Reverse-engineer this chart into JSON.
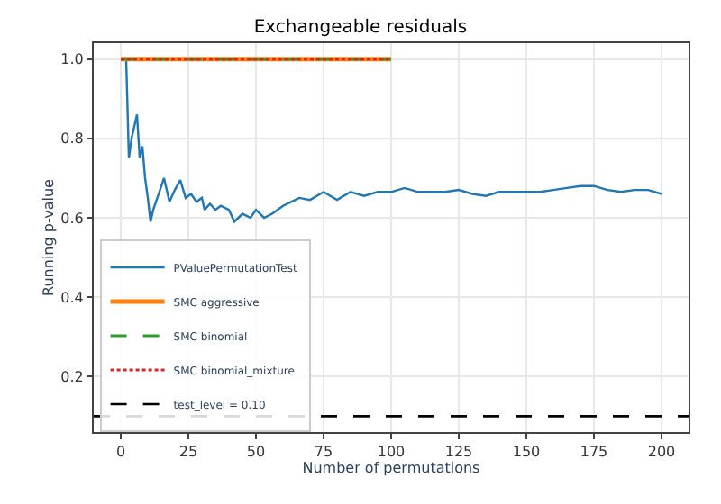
{
  "chart_data": {
    "type": "line",
    "title": "Exchangeable residuals",
    "xlabel": "Number of permutations",
    "ylabel": "Running p-value",
    "xlim": [
      -10,
      210
    ],
    "ylim": [
      0.06,
      1.04
    ],
    "xticks": [
      0,
      25,
      50,
      75,
      100,
      125,
      150,
      175,
      200
    ],
    "yticks": [
      0.2,
      0.4,
      0.6,
      0.8,
      {
        "value": 1,
        "label": "1.0"
      }
    ],
    "grid": true,
    "legend": "bottom left",
    "marker": "none",
    "series": [
      {
        "name": "PValuePermutationTest",
        "color": "#1f77b4",
        "line_style": "solid",
        "x": [
          1,
          2,
          3,
          4,
          5,
          6,
          7,
          8,
          9,
          10,
          11,
          12,
          14,
          16,
          18,
          20,
          22,
          24,
          26,
          28,
          30,
          31,
          33,
          35,
          37,
          40,
          42,
          45,
          48,
          50,
          53,
          56,
          60,
          63,
          66,
          70,
          75,
          80,
          85,
          90,
          95,
          100,
          105,
          110,
          115,
          120,
          125,
          130,
          135,
          140,
          145,
          150,
          155,
          160,
          165,
          170,
          175,
          180,
          185,
          190,
          195,
          200
        ],
        "values": [
          1.0,
          1.0,
          0.75,
          0.8,
          0.83,
          0.86,
          0.75,
          0.78,
          0.7,
          0.65,
          0.59,
          0.62,
          0.66,
          0.7,
          0.64,
          0.67,
          0.695,
          0.65,
          0.66,
          0.64,
          0.65,
          0.62,
          0.635,
          0.62,
          0.63,
          0.62,
          0.59,
          0.61,
          0.6,
          0.62,
          0.6,
          0.61,
          0.63,
          0.64,
          0.65,
          0.645,
          0.665,
          0.645,
          0.665,
          0.655,
          0.665,
          0.665,
          0.675,
          0.665,
          0.665,
          0.665,
          0.67,
          0.66,
          0.655,
          0.665,
          0.665,
          0.665,
          0.665,
          0.67,
          0.675,
          0.68,
          0.68,
          0.67,
          0.665,
          0.67,
          0.67,
          0.66
        ]
      },
      {
        "name": "SMC aggressive",
        "color": "#ff7f0e",
        "line_style": "solid",
        "x": [
          0,
          100
        ],
        "values": [
          1.0,
          1.0
        ]
      },
      {
        "name": "SMC binomial",
        "color": "#2ca02c",
        "line_style": "dashed",
        "x": [
          0,
          100
        ],
        "values": [
          1.0,
          1.0
        ]
      },
      {
        "name": "SMC binomial_mixture",
        "color": "#d62728",
        "line_style": "dotted",
        "x": [
          0,
          100
        ],
        "values": [
          1.0,
          1.0
        ]
      }
    ],
    "ref_lines": [
      {
        "axis": "y",
        "value": 0.1,
        "label": "test_level = 0.10",
        "color": "#000000",
        "line_style": "dashed"
      }
    ]
  }
}
